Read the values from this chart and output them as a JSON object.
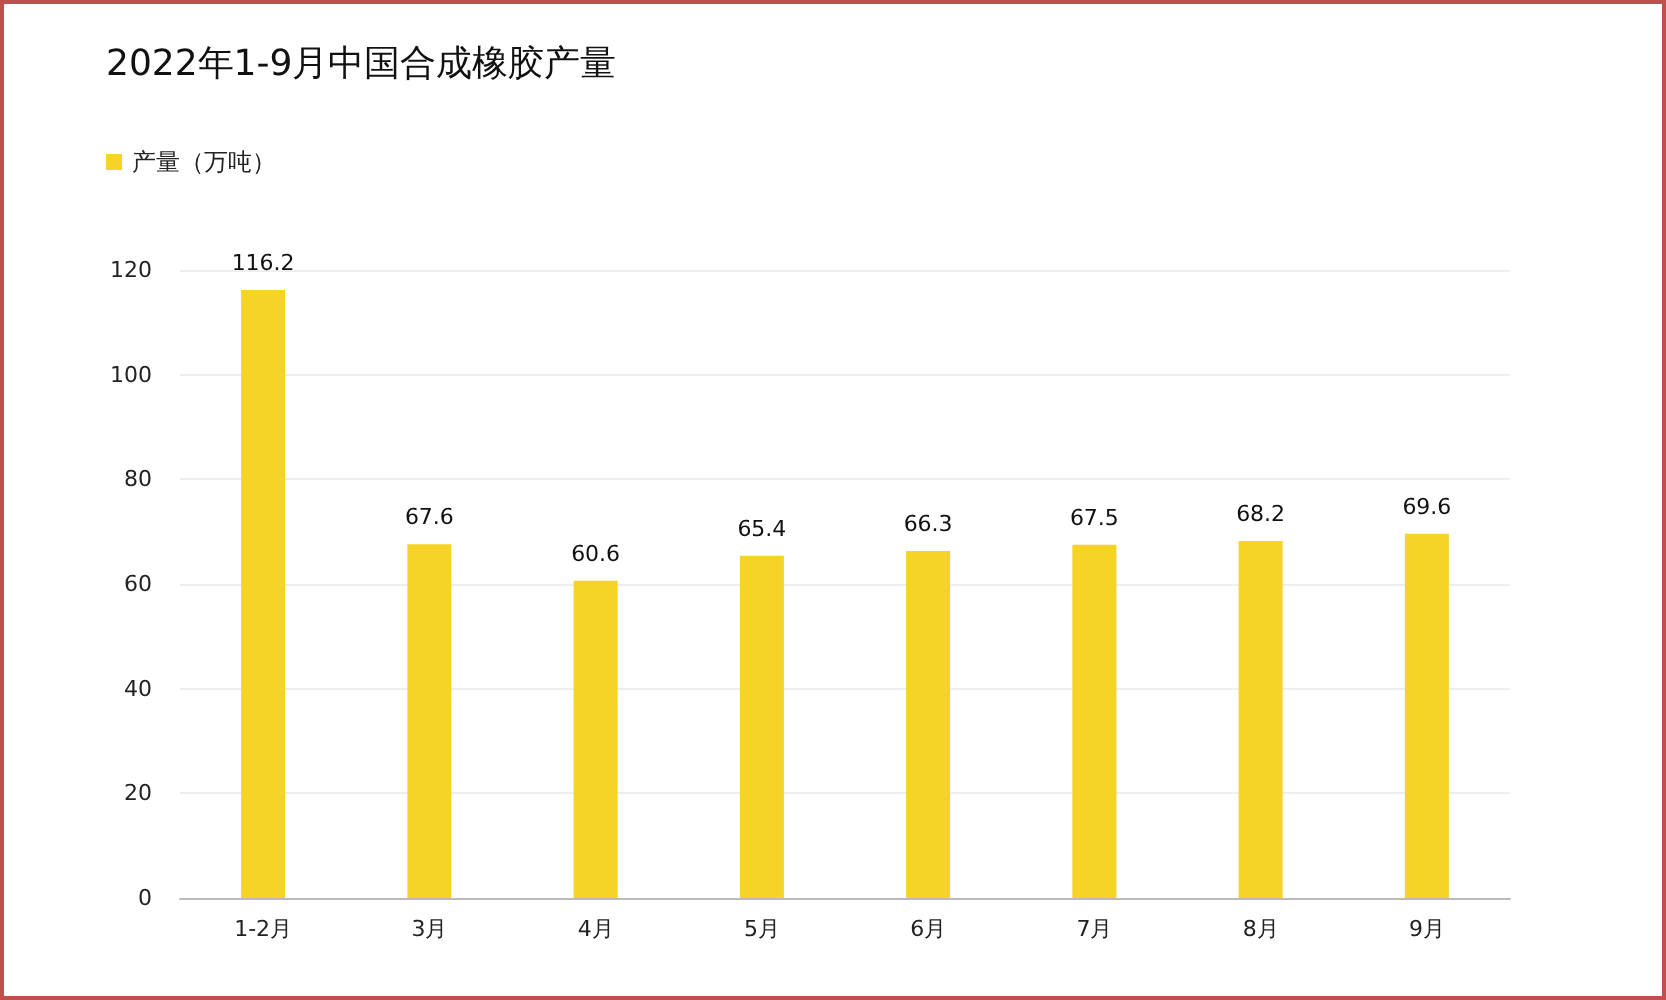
{
  "chart_data": {
    "type": "bar",
    "title": "2022年1-9月中国合成橡胶产量",
    "categories": [
      "1-2月",
      "3月",
      "4月",
      "5月",
      "6月",
      "7月",
      "8月",
      "9月"
    ],
    "series": [
      {
        "name": "产量（万吨）",
        "color": "#f5d327",
        "values": [
          116.2,
          67.6,
          60.6,
          65.4,
          66.3,
          67.5,
          68.2,
          69.6
        ]
      }
    ],
    "ylim": [
      0,
      120
    ],
    "yticks": [
      0,
      20,
      40,
      60,
      80,
      100,
      120
    ],
    "grid": "y",
    "legend": "top left",
    "data_labels": true
  }
}
